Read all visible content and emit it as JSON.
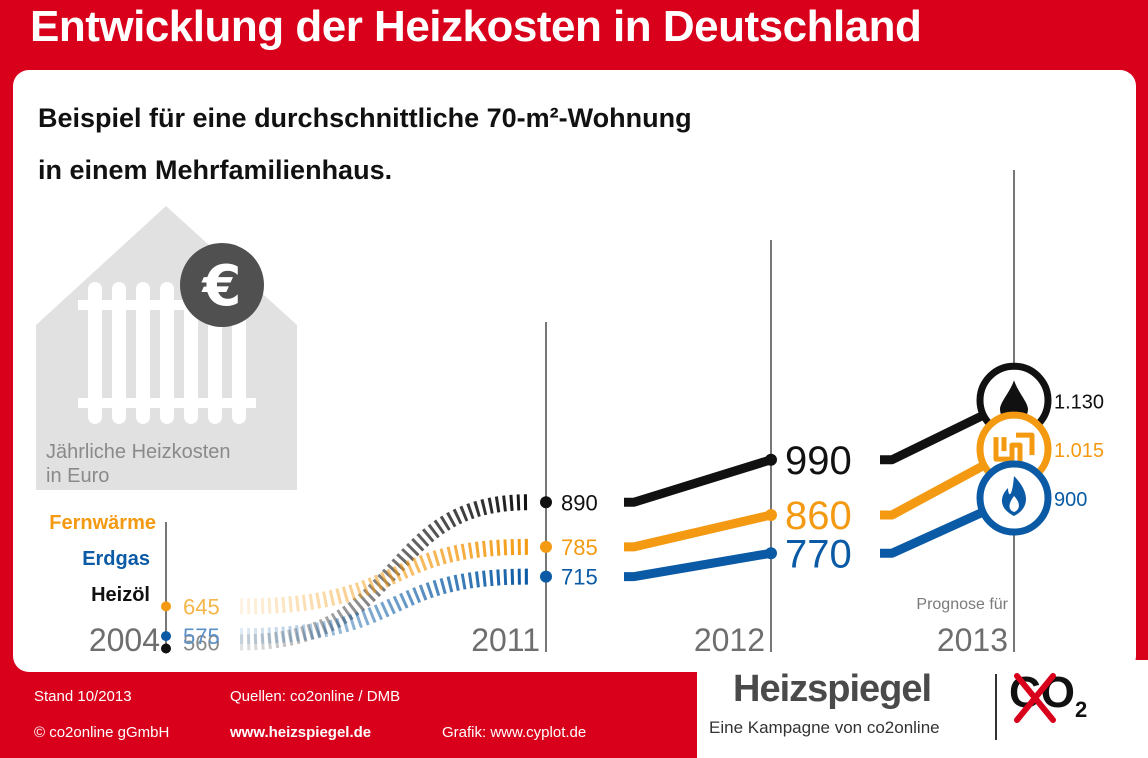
{
  "title": "Entwicklung der Heizkosten in Deutschland",
  "subtitle_line1": "Beispiel für eine durchschnittliche 70-m²-Wohnung",
  "subtitle_line2": "in einem Mehrfamilienhaus.",
  "house_caption_line1": "Jährliche Heizkosten",
  "house_caption_line2": "in Euro",
  "prognose_label": "Prognose für",
  "colors": {
    "Heizöl": "#111111",
    "Erdgas": "#0a5aa5",
    "Fernwärme": "#f39a12",
    "accent_red": "#d9001b"
  },
  "chart_data": {
    "type": "line",
    "title": "Entwicklung der Heizkosten in Deutschland",
    "xlabel": "",
    "ylabel": "Jährliche Heizkosten in Euro",
    "x": [
      "2004",
      "2011",
      "2012",
      "2013"
    ],
    "x_note": {
      "2013": "Prognose für"
    },
    "series": [
      {
        "name": "Heizöl",
        "values": [
          560,
          890,
          990,
          1130
        ],
        "labels": [
          "560",
          "890",
          "990",
          "1.130"
        ],
        "color": "#111111",
        "icon": "oil-drop-icon"
      },
      {
        "name": "Fernwärme",
        "values": [
          645,
          785,
          860,
          1015
        ],
        "labels": [
          "645",
          "785",
          "860",
          "1.015"
        ],
        "color": "#f39a12",
        "icon": "district-heating-icon"
      },
      {
        "name": "Erdgas",
        "values": [
          575,
          715,
          770,
          900
        ],
        "labels": [
          "575",
          "715",
          "770",
          "900"
        ],
        "color": "#0a5aa5",
        "icon": "gas-flame-icon"
      }
    ],
    "legend": "left, at 2004 values",
    "grid": false
  },
  "footer": {
    "stand": "Stand 10/2013",
    "copyright": "© co2online gGmbH",
    "quellen": "Quellen: co2online / DMB",
    "website": "www.heizspiegel.de",
    "grafik": "Grafik: www.cyplot.de"
  },
  "brand": {
    "name": "Heizspiegel",
    "claim": "Eine Kampagne von co2online",
    "co2": "CO",
    "co2_sub": "2"
  }
}
